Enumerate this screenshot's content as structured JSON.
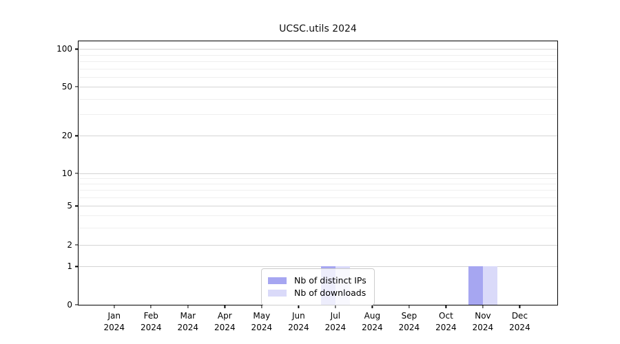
{
  "figure": {
    "background": "#ffffff"
  },
  "chart_data": {
    "type": "bar",
    "title": "UCSC.utils 2024",
    "categories": [
      "Jan",
      "Feb",
      "Mar",
      "Apr",
      "May",
      "Jun",
      "Jul",
      "Aug",
      "Sep",
      "Oct",
      "Nov",
      "Dec"
    ],
    "category_year": "2024",
    "series": [
      {
        "name": "Nb of distinct IPs",
        "color": "#a6a6f1",
        "values": [
          0,
          0,
          0,
          0,
          0,
          0,
          1,
          0,
          0,
          0,
          1,
          0
        ]
      },
      {
        "name": "Nb of downloads",
        "color": "#dadaf9",
        "values": [
          0,
          0,
          0,
          0,
          0,
          0,
          1,
          0,
          0,
          0,
          1,
          0
        ]
      }
    ],
    "xlabel": "",
    "ylabel": "",
    "yscale": "log-like",
    "ylim": [
      0,
      100
    ],
    "grid": "horizontal",
    "legend_position": "inside-bottom-center",
    "y_ticks": [
      {
        "value": 100,
        "label": "100",
        "pct": 3.0
      },
      {
        "value": 50,
        "label": "50",
        "pct": 17.3
      },
      {
        "value": 20,
        "label": "20",
        "pct": 35.9
      },
      {
        "value": 10,
        "label": "10",
        "pct": 50.0
      },
      {
        "value": 5,
        "label": "5",
        "pct": 62.5
      },
      {
        "value": 2,
        "label": "2",
        "pct": 77.2
      },
      {
        "value": 1,
        "label": "1",
        "pct": 85.5
      },
      {
        "value": 0,
        "label": "0",
        "pct": 100
      }
    ],
    "y_minor_ticks": [
      {
        "value": 3,
        "pct": 70.8
      },
      {
        "value": 4,
        "pct": 66.1
      },
      {
        "value": 6,
        "pct": 59.3
      },
      {
        "value": 7,
        "pct": 56.5
      },
      {
        "value": 8,
        "pct": 54.1
      },
      {
        "value": 9,
        "pct": 52.0
      },
      {
        "value": 30,
        "pct": 27.7
      },
      {
        "value": 40,
        "pct": 21.9
      },
      {
        "value": 60,
        "pct": 13.6
      },
      {
        "value": 70,
        "pct": 10.4
      },
      {
        "value": 80,
        "pct": 7.6
      },
      {
        "value": 90,
        "pct": 5.2
      }
    ],
    "layout": {
      "x_first_pct": 7.45,
      "x_step_pct": 7.7,
      "bar_width_pct": 3.07,
      "grid_major_color": "#d4d4d4",
      "grid_minor_color": "#efefef"
    }
  }
}
